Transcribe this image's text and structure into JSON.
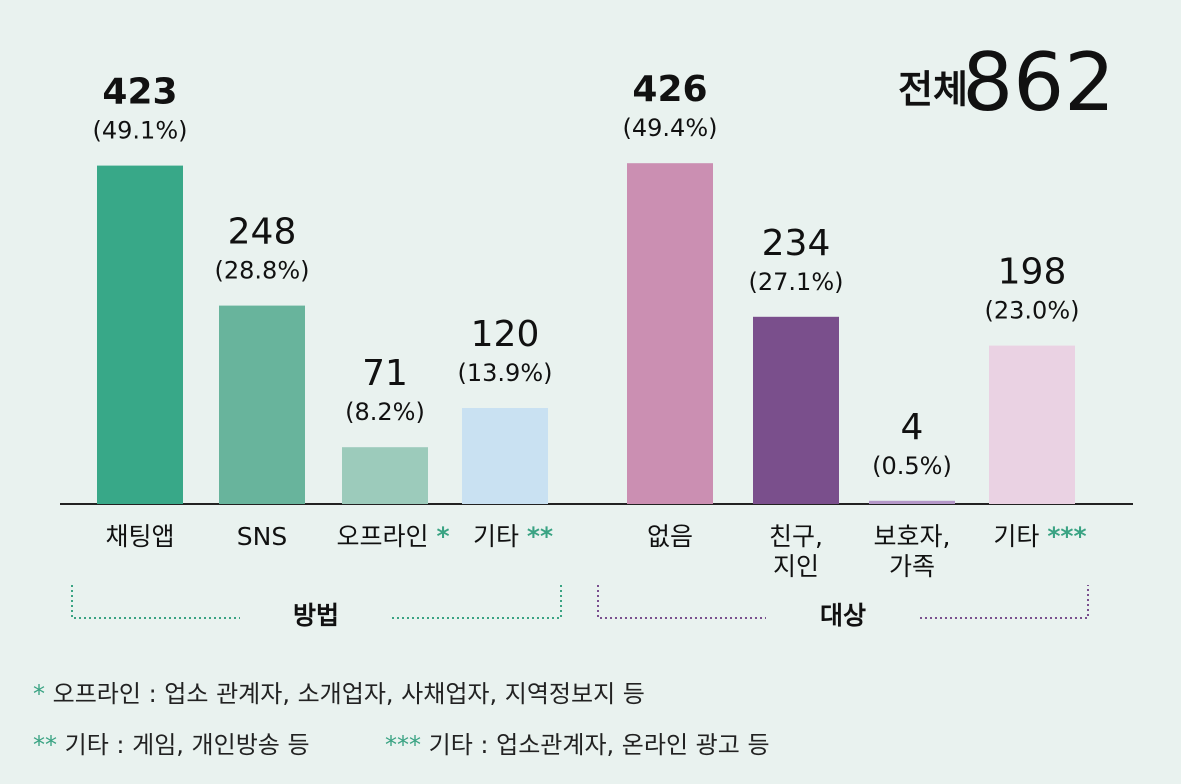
{
  "chart_data": {
    "type": "bar",
    "total_label": "전체",
    "total": 862,
    "groups": [
      {
        "name": "방법",
        "color": "#3aa383",
        "categories": [
          "채팅앱",
          "SNS",
          "오프라인",
          "기타"
        ],
        "category_marks": [
          null,
          null,
          "*",
          "**"
        ],
        "values": [
          423,
          248,
          71,
          120
        ],
        "percent_labels": [
          "(49.1%)",
          "(28.8%)",
          "(8.2%)",
          "(13.9%)"
        ],
        "colors": [
          "#38a888",
          "#68b49c",
          "#9ccbbb",
          "#c9e1f2"
        ]
      },
      {
        "name": "대상",
        "color": "#7b4f8f",
        "categories": [
          "없음",
          "친구,\n지인",
          "보호자,\n가족",
          "기타"
        ],
        "category_marks": [
          null,
          null,
          null,
          "***"
        ],
        "values": [
          426,
          234,
          4,
          198
        ],
        "percent_labels": [
          "(49.4%)",
          "(27.1%)",
          "(0.5%)",
          "(23.0%)"
        ],
        "colors": [
          "#cb8fb2",
          "#7a4f8c",
          "#b497c8",
          "#ead2e3"
        ]
      }
    ],
    "mark_color": "#3aa383",
    "footnotes": [
      {
        "marker": "*",
        "text": "오프라인 : 업소 관계자, 소개업자, 사채업자, 지역정보지 등"
      },
      {
        "marker": "**",
        "text": "기타 : 게임, 개인방송 등"
      },
      {
        "marker": "***",
        "text": "기타 : 업소관계자, 온라인 광고 등"
      }
    ]
  }
}
